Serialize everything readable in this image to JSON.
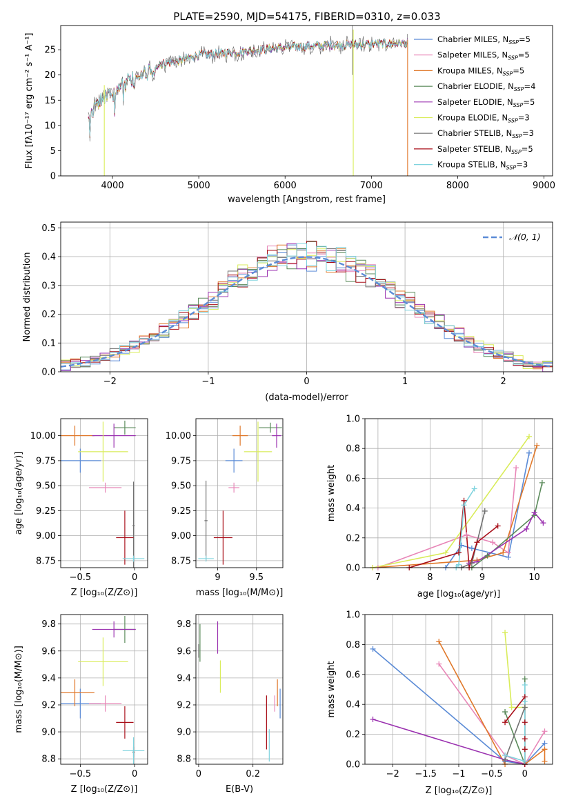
{
  "colors": [
    "#5b8bd6",
    "#e887b8",
    "#e0782a",
    "#5a8a5a",
    "#9b32b0",
    "#d9ec5a",
    "#707070",
    "#a80e18",
    "#7fd3de"
  ],
  "chart_data": [
    {
      "id": "spectrum",
      "type": "line",
      "title": "PLATE=2590, MJD=54175, FIBERID=0310, z=0.033",
      "xlabel": "wavelength [Angstrom, rest frame]",
      "ylabel": "Flux [fλ10⁻¹⁷ erg cm⁻² s⁻¹ A⁻¹]",
      "xlim": [
        3400,
        9100
      ],
      "ylim": [
        0,
        29.8
      ],
      "xticks": [
        4000,
        5000,
        6000,
        7000,
        8000,
        9000
      ],
      "yticks": [
        0,
        5,
        10,
        15,
        20,
        25
      ],
      "grid": false,
      "legend_position": "top-right",
      "x_range_data": [
        3720,
        7420
      ],
      "continuum": {
        "x": [
          3720,
          3800,
          3900,
          4000,
          4100,
          4200,
          4300,
          4500,
          4700,
          5000,
          5300,
          5600,
          6000,
          6300,
          6600,
          7000,
          7400
        ],
        "y": [
          12,
          15,
          16.5,
          18,
          19,
          20,
          20.5,
          22,
          22.5,
          24,
          24.3,
          24.8,
          25.5,
          25.7,
          25.9,
          26.1,
          26.3
        ]
      },
      "series": [
        {
          "label": "Chabrier MILES, N",
          "label_sub": "SSP",
          "label_suffix": "=5"
        },
        {
          "label": "Salpeter MILES, N",
          "label_sub": "SSP",
          "label_suffix": "=5"
        },
        {
          "label": "Kroupa MILES, N",
          "label_sub": "SSP",
          "label_suffix": "=5"
        },
        {
          "label": "Chabrier ELODIE, N",
          "label_sub": "SSP",
          "label_suffix": "=4"
        },
        {
          "label": "Salpeter ELODIE, N",
          "label_sub": "SSP",
          "label_suffix": "=5"
        },
        {
          "label": "Kroupa ELODIE, N",
          "label_sub": "SSP",
          "label_suffix": "=3"
        },
        {
          "label": "Chabrier STELIB, N",
          "label_sub": "SSP",
          "label_suffix": "=3"
        },
        {
          "label": "Salpeter STELIB, N",
          "label_sub": "SSP",
          "label_suffix": "=5"
        },
        {
          "label": "Kroupa STELIB, N",
          "label_sub": "SSP",
          "label_suffix": "=3"
        }
      ]
    },
    {
      "id": "residuals",
      "type": "line",
      "xlabel": "(data-model)/error",
      "ylabel": "Normed distribution",
      "xlim": [
        -2.5,
        2.5
      ],
      "ylim": [
        0,
        0.52
      ],
      "xticks": [
        -2,
        -1,
        0,
        1,
        2
      ],
      "yticks": [
        0.0,
        0.1,
        0.2,
        0.3,
        0.4,
        0.5
      ],
      "grid": true,
      "legend_position": "top-right",
      "legend": "𝒩(0, 1)",
      "normal_curve": {
        "mean": 0,
        "sigma": 1
      }
    },
    {
      "id": "age-Z",
      "type": "scatter",
      "xlabel": "Z [log₁₀(Z/Z⊙)]",
      "ylabel": "age  [log₁₀(age/yr)]",
      "xlim": [
        -0.68,
        0.12
      ],
      "ylim": [
        8.68,
        10.17
      ],
      "xticks": [
        -0.5,
        0.0
      ],
      "yticks": [
        8.75,
        9.0,
        9.25,
        9.5,
        9.75,
        10.0
      ],
      "grid": true,
      "points": [
        {
          "x": -0.5,
          "y": 9.75,
          "xerr": 0.19,
          "yerr": 0.12
        },
        {
          "x": -0.27,
          "y": 9.48,
          "xerr": 0.15,
          "yerr": 0.05
        },
        {
          "x": -0.55,
          "y": 10.0,
          "xerr": 0.18,
          "yerr": 0.1
        },
        {
          "x": -0.09,
          "y": 10.08,
          "xerr": 0.1,
          "yerr": 0.07
        },
        {
          "x": -0.19,
          "y": 10.0,
          "xerr": 0.2,
          "yerr": 0.12
        },
        {
          "x": -0.29,
          "y": 9.84,
          "xerr": 0.23,
          "yerr": 0.3
        },
        {
          "x": -0.01,
          "y": 9.1,
          "xerr": 0.01,
          "yerr": 0.44
        },
        {
          "x": -0.09,
          "y": 8.98,
          "xerr": 0.08,
          "yerr": 0.27
        },
        {
          "x": -0.01,
          "y": 8.77,
          "xerr": 0.1,
          "yerr": 0.03
        }
      ]
    },
    {
      "id": "age-mass",
      "type": "scatter",
      "xlabel": "mass [log₁₀(M/M⊙)]",
      "ylabel": "",
      "xlim": [
        8.72,
        9.84
      ],
      "ylim": [
        8.68,
        10.17
      ],
      "xticks": [
        9.0,
        9.5
      ],
      "yticks": [
        8.75,
        9.0,
        9.25,
        9.5,
        9.75,
        10.0
      ],
      "grid": true,
      "points": [
        {
          "x": 9.21,
          "y": 9.75,
          "xerr": 0.11,
          "yerr": 0.12
        },
        {
          "x": 9.21,
          "y": 9.48,
          "xerr": 0.07,
          "yerr": 0.05
        },
        {
          "x": 9.29,
          "y": 10.0,
          "xerr": 0.1,
          "yerr": 0.1
        },
        {
          "x": 9.68,
          "y": 10.08,
          "xerr": 0.15,
          "yerr": 0.05
        },
        {
          "x": 9.76,
          "y": 10.0,
          "xerr": 0.06,
          "yerr": 0.12
        },
        {
          "x": 9.52,
          "y": 9.84,
          "xerr": 0.18,
          "yerr": 0.3
        },
        {
          "x": 8.85,
          "y": 9.15,
          "xerr": 0.02,
          "yerr": 0.4
        },
        {
          "x": 9.07,
          "y": 8.98,
          "xerr": 0.12,
          "yerr": 0.27
        },
        {
          "x": 8.85,
          "y": 8.77,
          "xerr": 0.1,
          "yerr": 0.03
        }
      ]
    },
    {
      "id": "weight-age",
      "type": "line",
      "xlabel": "age  [log₁₀(age/yr)]",
      "ylabel": "mass weight",
      "xlim": [
        6.75,
        10.35
      ],
      "ylim": [
        0,
        1.0
      ],
      "xticks": [
        7,
        8,
        9,
        10
      ],
      "yticks": [
        0.0,
        0.2,
        0.4,
        0.6,
        0.8,
        1.0
      ],
      "grid": true,
      "series": [
        {
          "x": [
            8.3,
            8.6,
            8.8,
            9.5,
            9.9
          ],
          "y": [
            0.0,
            0.15,
            0.13,
            0.07,
            0.77
          ]
        },
        {
          "x": [
            7.0,
            8.7,
            9.2,
            9.5,
            9.65
          ],
          "y": [
            0.0,
            0.22,
            0.17,
            0.1,
            0.67
          ]
        },
        {
          "x": [
            6.9,
            8.9,
            9.4,
            10.05
          ],
          "y": [
            0.0,
            0.05,
            0.1,
            0.82
          ]
        },
        {
          "x": [
            8.8,
            9.1,
            10.0,
            10.15
          ],
          "y": [
            0.0,
            0.08,
            0.35,
            0.57
          ]
        },
        {
          "x": [
            8.75,
            8.9,
            9.85,
            10.0,
            10.17
          ],
          "y": [
            0.03,
            0.04,
            0.26,
            0.37,
            0.3
          ]
        },
        {
          "x": [
            6.9,
            8.3,
            9.9
          ],
          "y": [
            0.0,
            0.1,
            0.88
          ]
        },
        {
          "x": [
            8.6,
            8.8,
            9.05
          ],
          "y": [
            0.0,
            0.03,
            0.38
          ]
        },
        {
          "x": [
            7.6,
            8.55,
            8.65,
            8.75,
            8.9,
            9.3
          ],
          "y": [
            0.0,
            0.1,
            0.45,
            0.0,
            0.17,
            0.28
          ]
        },
        {
          "x": [
            8.5,
            8.55,
            8.65,
            8.85
          ],
          "y": [
            0.0,
            0.02,
            0.42,
            0.53
          ]
        }
      ]
    },
    {
      "id": "mass-Z",
      "type": "scatter",
      "xlabel": "Z [log₁₀(Z/Z⊙)]",
      "ylabel": "mass [log₁₀(M/M⊙)]",
      "xlim": [
        -0.68,
        0.12
      ],
      "ylim": [
        8.76,
        9.87
      ],
      "xticks": [
        -0.5,
        0.0
      ],
      "yticks": [
        8.8,
        9.0,
        9.2,
        9.4,
        9.6,
        9.8
      ],
      "grid": true,
      "points": [
        {
          "x": -0.5,
          "y": 9.21,
          "xerr": 0.19,
          "yerr": 0.11
        },
        {
          "x": -0.27,
          "y": 9.21,
          "xerr": 0.15,
          "yerr": 0.06
        },
        {
          "x": -0.55,
          "y": 9.29,
          "xerr": 0.18,
          "yerr": 0.1
        },
        {
          "x": -0.09,
          "y": 9.76,
          "xerr": 0.1,
          "yerr": 0.1
        },
        {
          "x": -0.19,
          "y": 9.76,
          "xerr": 0.2,
          "yerr": 0.06
        },
        {
          "x": -0.29,
          "y": 9.52,
          "xerr": 0.23,
          "yerr": 0.18
        },
        {
          "x": -0.01,
          "y": 8.85,
          "xerr": 0.01,
          "yerr": 0.04
        },
        {
          "x": -0.09,
          "y": 9.07,
          "xerr": 0.08,
          "yerr": 0.12
        },
        {
          "x": -0.01,
          "y": 8.86,
          "xerr": 0.1,
          "yerr": 0.1
        }
      ]
    },
    {
      "id": "mass-EBV",
      "type": "scatter",
      "xlabel": "E(B-V)",
      "ylabel": "",
      "xlim": [
        -0.01,
        0.31
      ],
      "ylim": [
        8.76,
        9.87
      ],
      "xticks": [
        0.0,
        0.2
      ],
      "yticks": [
        8.8,
        9.0,
        9.2,
        9.4,
        9.6,
        9.8
      ],
      "grid": true,
      "points": [
        {
          "x": 0.3,
          "y": 9.21,
          "xerr": 0.0,
          "yerr": 0.11
        },
        {
          "x": 0.28,
          "y": 9.21,
          "xerr": 0.0,
          "yerr": 0.06
        },
        {
          "x": 0.29,
          "y": 9.29,
          "xerr": 0.0,
          "yerr": 0.1
        },
        {
          "x": 0.005,
          "y": 9.66,
          "xerr": 0.0,
          "yerr": 0.14
        },
        {
          "x": 0.07,
          "y": 9.7,
          "xerr": 0.0,
          "yerr": 0.12
        },
        {
          "x": 0.08,
          "y": 9.41,
          "xerr": 0.0,
          "yerr": 0.12
        },
        {
          "x": 0.0,
          "y": 9.6,
          "xerr": 0.0,
          "yerr": 0.05
        },
        {
          "x": 0.25,
          "y": 9.07,
          "xerr": 0.0,
          "yerr": 0.2
        },
        {
          "x": 0.26,
          "y": 8.9,
          "xerr": 0.0,
          "yerr": 0.12
        }
      ]
    },
    {
      "id": "weight-Z",
      "type": "line",
      "xlabel": "Z [log₁₀(Z/Z⊙)]",
      "ylabel": "mass weight",
      "xlim": [
        -2.42,
        0.42
      ],
      "ylim": [
        0,
        1.0
      ],
      "xticks": [
        -2.0,
        -1.5,
        -1.0,
        -0.5,
        0.0
      ],
      "yticks": [
        0.0,
        0.2,
        0.4,
        0.6,
        0.8,
        1.0
      ],
      "grid": true,
      "series": [
        {
          "x": [
            -2.3,
            -0.3,
            0.0,
            0.3
          ],
          "y": [
            0.77,
            0.02,
            0.0,
            0.14
          ]
        },
        {
          "x": [
            -1.3,
            -0.3,
            0.0,
            0.3
          ],
          "y": [
            0.67,
            0.06,
            0.0,
            0.22
          ]
        },
        {
          "x": [
            -1.3,
            -0.3,
            0.0,
            0.3,
            0.3
          ],
          "y": [
            0.82,
            0.0,
            0.0,
            0.1,
            0.02
          ]
        },
        {
          "x": [
            -0.3,
            0.0,
            0.0
          ],
          "y": [
            0.35,
            0.0,
            0.57
          ]
        },
        {
          "x": [
            -2.3,
            -0.3,
            0.0
          ],
          "y": [
            0.3,
            0.03,
            0.0
          ]
        },
        {
          "x": [
            -0.3,
            -0.2,
            0.0
          ],
          "y": [
            0.88,
            0.38,
            0.38
          ]
        },
        {
          "x": [
            -0.3,
            0.0
          ],
          "y": [
            0.03,
            0.38
          ]
        },
        {
          "x": [
            -0.3,
            0.0,
            0.0,
            0.0,
            0.0,
            0.0
          ],
          "y": [
            0.28,
            0.45,
            0.28,
            0.17,
            0.1,
            0.0
          ]
        },
        {
          "x": [
            -0.3,
            0.0,
            0.0,
            0.0
          ],
          "y": [
            0.06,
            0.02,
            0.42,
            0.53
          ]
        }
      ]
    }
  ]
}
